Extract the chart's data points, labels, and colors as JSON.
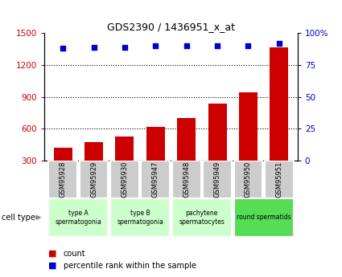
{
  "title": "GDS2390 / 1436951_x_at",
  "samples": [
    "GSM95928",
    "GSM95929",
    "GSM95930",
    "GSM95947",
    "GSM95948",
    "GSM95949",
    "GSM95950",
    "GSM95951"
  ],
  "counts": [
    420,
    475,
    530,
    620,
    700,
    840,
    940,
    1370
  ],
  "percentile_ranks": [
    88,
    89,
    89,
    90,
    90,
    90,
    90,
    92
  ],
  "ylim_left": [
    300,
    1500
  ],
  "ylim_right": [
    0,
    100
  ],
  "yticks_left": [
    300,
    600,
    900,
    1200,
    1500
  ],
  "yticks_right": [
    0,
    25,
    50,
    75,
    100
  ],
  "ytick_labels_right": [
    "0",
    "25",
    "50",
    "75",
    "100%"
  ],
  "bar_color": "#cc0000",
  "dot_color": "#0000cc",
  "grid_lines": [
    600,
    900,
    1200
  ],
  "group_boundaries": [
    {
      "start": 0,
      "end": 1,
      "label": "type A\nspermatogonia",
      "color": "#ccffcc"
    },
    {
      "start": 2,
      "end": 3,
      "label": "type B\nspermatogonia",
      "color": "#ccffcc"
    },
    {
      "start": 4,
      "end": 5,
      "label": "pachytene\nspermatocytes",
      "color": "#ccffcc"
    },
    {
      "start": 6,
      "end": 7,
      "label": "round spermatids",
      "color": "#55dd55"
    }
  ],
  "cell_type_label": "cell type",
  "legend_count_label": "count",
  "legend_percentile_label": "percentile rank within the sample",
  "sample_box_color": "#cccccc",
  "arrow_color": "#888888"
}
